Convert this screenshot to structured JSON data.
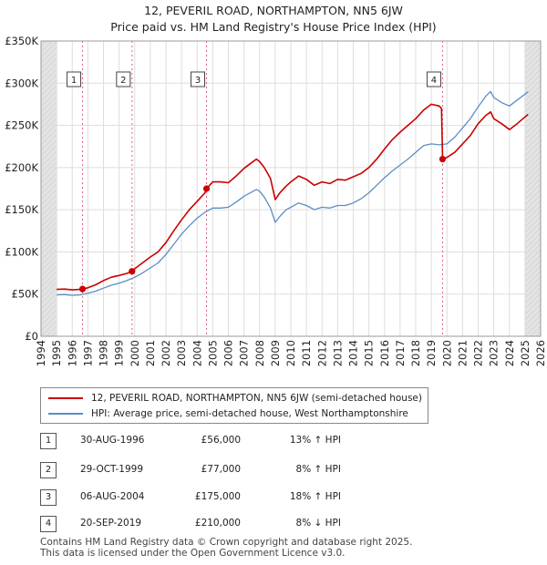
{
  "title_line1": "12, PEVERIL ROAD, NORTHAMPTON, NN5 6JW",
  "title_line2": "Price paid vs. HM Land Registry's House Price Index (HPI)",
  "chart_data": {
    "type": "line",
    "title": "Price paid vs. HM Land Registry's House Price Index (HPI)",
    "xlim": [
      1994,
      2026
    ],
    "ylim": [
      0,
      350000
    ],
    "xticks": [
      1994,
      1995,
      1996,
      1997,
      1998,
      1999,
      2000,
      2001,
      2002,
      2003,
      2004,
      2005,
      2006,
      2007,
      2008,
      2009,
      2010,
      2011,
      2012,
      2013,
      2014,
      2015,
      2016,
      2017,
      2018,
      2019,
      2020,
      2021,
      2022,
      2023,
      2024,
      2025,
      2026
    ],
    "yticks": [
      {
        "value": 0,
        "label": "£0"
      },
      {
        "value": 50000,
        "label": "£50K"
      },
      {
        "value": 100000,
        "label": "£100K"
      },
      {
        "value": 150000,
        "label": "£150K"
      },
      {
        "value": 200000,
        "label": "£200K"
      },
      {
        "value": 250000,
        "label": "£250K"
      },
      {
        "value": 300000,
        "label": "£300K"
      },
      {
        "value": 350000,
        "label": "£350K"
      }
    ],
    "shaded_before": 1995,
    "shaded_after": 2025,
    "series": [
      {
        "name": "12, PEVERIL ROAD, NORTHAMPTON, NN5 6JW (semi-detached house)",
        "color": "#cc0000",
        "points": [
          [
            1995.0,
            55500
          ],
          [
            1995.5,
            56000
          ],
          [
            1996.0,
            55000
          ],
          [
            1996.5,
            55500
          ],
          [
            1996.66,
            56000
          ],
          [
            1997.0,
            57500
          ],
          [
            1997.5,
            61000
          ],
          [
            1998.0,
            66000
          ],
          [
            1998.5,
            70000
          ],
          [
            1999.0,
            72000
          ],
          [
            1999.5,
            74500
          ],
          [
            1999.83,
            77000
          ],
          [
            2000.0,
            80000
          ],
          [
            2000.5,
            87000
          ],
          [
            2001.0,
            94000
          ],
          [
            2001.5,
            100000
          ],
          [
            2002.0,
            111000
          ],
          [
            2002.5,
            125000
          ],
          [
            2003.0,
            138000
          ],
          [
            2003.5,
            150000
          ],
          [
            2004.0,
            160000
          ],
          [
            2004.5,
            170000
          ],
          [
            2004.6,
            175000
          ],
          [
            2005.0,
            183000
          ],
          [
            2005.5,
            183000
          ],
          [
            2006.0,
            182000
          ],
          [
            2006.5,
            190000
          ],
          [
            2007.0,
            199000
          ],
          [
            2007.5,
            206000
          ],
          [
            2007.8,
            210000
          ],
          [
            2008.0,
            207000
          ],
          [
            2008.3,
            200000
          ],
          [
            2008.7,
            187000
          ],
          [
            2009.0,
            162000
          ],
          [
            2009.3,
            170000
          ],
          [
            2009.7,
            178000
          ],
          [
            2010.0,
            183000
          ],
          [
            2010.5,
            190000
          ],
          [
            2011.0,
            186000
          ],
          [
            2011.5,
            179000
          ],
          [
            2012.0,
            183000
          ],
          [
            2012.5,
            181000
          ],
          [
            2013.0,
            186000
          ],
          [
            2013.5,
            185000
          ],
          [
            2014.0,
            189000
          ],
          [
            2014.5,
            193000
          ],
          [
            2015.0,
            200000
          ],
          [
            2015.5,
            210000
          ],
          [
            2016.0,
            222000
          ],
          [
            2016.5,
            233000
          ],
          [
            2017.0,
            242000
          ],
          [
            2017.5,
            250000
          ],
          [
            2018.0,
            258000
          ],
          [
            2018.5,
            268000
          ],
          [
            2019.0,
            275000
          ],
          [
            2019.5,
            273000
          ],
          [
            2019.65,
            270000
          ],
          [
            2019.72,
            210000
          ],
          [
            2020.0,
            212000
          ],
          [
            2020.5,
            218000
          ],
          [
            2021.0,
            228000
          ],
          [
            2021.5,
            238000
          ],
          [
            2022.0,
            252000
          ],
          [
            2022.5,
            262000
          ],
          [
            2022.8,
            266000
          ],
          [
            2023.0,
            258000
          ],
          [
            2023.5,
            252000
          ],
          [
            2024.0,
            245000
          ],
          [
            2024.5,
            252000
          ],
          [
            2025.0,
            260000
          ],
          [
            2025.2,
            263000
          ]
        ]
      },
      {
        "name": "HPI: Average price, semi-detached house, West Northamptonshire",
        "color": "#5b8ec6",
        "points": [
          [
            1995.0,
            49000
          ],
          [
            1995.5,
            49500
          ],
          [
            1996.0,
            48500
          ],
          [
            1996.5,
            49000
          ],
          [
            1997.0,
            51000
          ],
          [
            1997.5,
            53500
          ],
          [
            1998.0,
            57000
          ],
          [
            1998.5,
            60500
          ],
          [
            1999.0,
            63000
          ],
          [
            1999.5,
            66000
          ],
          [
            2000.0,
            70000
          ],
          [
            2000.5,
            75000
          ],
          [
            2001.0,
            81000
          ],
          [
            2001.5,
            87000
          ],
          [
            2002.0,
            97000
          ],
          [
            2002.5,
            109000
          ],
          [
            2003.0,
            121000
          ],
          [
            2003.5,
            131000
          ],
          [
            2004.0,
            140000
          ],
          [
            2004.5,
            147000
          ],
          [
            2005.0,
            152000
          ],
          [
            2005.5,
            152000
          ],
          [
            2006.0,
            153000
          ],
          [
            2006.5,
            159000
          ],
          [
            2007.0,
            166000
          ],
          [
            2007.5,
            171000
          ],
          [
            2007.8,
            174000
          ],
          [
            2008.0,
            172000
          ],
          [
            2008.3,
            165000
          ],
          [
            2008.7,
            152000
          ],
          [
            2009.0,
            135000
          ],
          [
            2009.3,
            142000
          ],
          [
            2009.7,
            150000
          ],
          [
            2010.0,
            153000
          ],
          [
            2010.5,
            158000
          ],
          [
            2011.0,
            155000
          ],
          [
            2011.5,
            150000
          ],
          [
            2012.0,
            153000
          ],
          [
            2012.5,
            152000
          ],
          [
            2013.0,
            155000
          ],
          [
            2013.5,
            155000
          ],
          [
            2014.0,
            158000
          ],
          [
            2014.5,
            163000
          ],
          [
            2015.0,
            170000
          ],
          [
            2015.5,
            179000
          ],
          [
            2016.0,
            188000
          ],
          [
            2016.5,
            196000
          ],
          [
            2017.0,
            203000
          ],
          [
            2017.5,
            210000
          ],
          [
            2018.0,
            218000
          ],
          [
            2018.5,
            226000
          ],
          [
            2019.0,
            228000
          ],
          [
            2019.5,
            227000
          ],
          [
            2020.0,
            228000
          ],
          [
            2020.5,
            236000
          ],
          [
            2021.0,
            247000
          ],
          [
            2021.5,
            258000
          ],
          [
            2022.0,
            272000
          ],
          [
            2022.5,
            285000
          ],
          [
            2022.8,
            290000
          ],
          [
            2023.0,
            283000
          ],
          [
            2023.5,
            277000
          ],
          [
            2024.0,
            273000
          ],
          [
            2024.5,
            280000
          ],
          [
            2025.0,
            287000
          ],
          [
            2025.2,
            290000
          ]
        ]
      }
    ],
    "sales": [
      {
        "label": "1",
        "x": 1996.66,
        "y": 56000
      },
      {
        "label": "2",
        "x": 1999.83,
        "y": 77000
      },
      {
        "label": "3",
        "x": 2004.6,
        "y": 175000
      },
      {
        "label": "4",
        "x": 2019.72,
        "y": 210000
      }
    ]
  },
  "legend": {
    "series1": "12, PEVERIL ROAD, NORTHAMPTON, NN5 6JW (semi-detached house)",
    "series2": "HPI: Average price, semi-detached house, West Northamptonshire"
  },
  "table": [
    {
      "num": "1",
      "date": "30-AUG-1996",
      "price": "£56,000",
      "hpi": "13% ↑ HPI"
    },
    {
      "num": "2",
      "date": "29-OCT-1999",
      "price": "£77,000",
      "hpi": "8% ↑ HPI"
    },
    {
      "num": "3",
      "date": "06-AUG-2004",
      "price": "£175,000",
      "hpi": "18% ↑ HPI"
    },
    {
      "num": "4",
      "date": "20-SEP-2019",
      "price": "£210,000",
      "hpi": "8% ↓ HPI"
    }
  ],
  "footer_line1": "Contains HM Land Registry data © Crown copyright and database right 2025.",
  "footer_line2": "This data is licensed under the Open Government Licence v3.0."
}
